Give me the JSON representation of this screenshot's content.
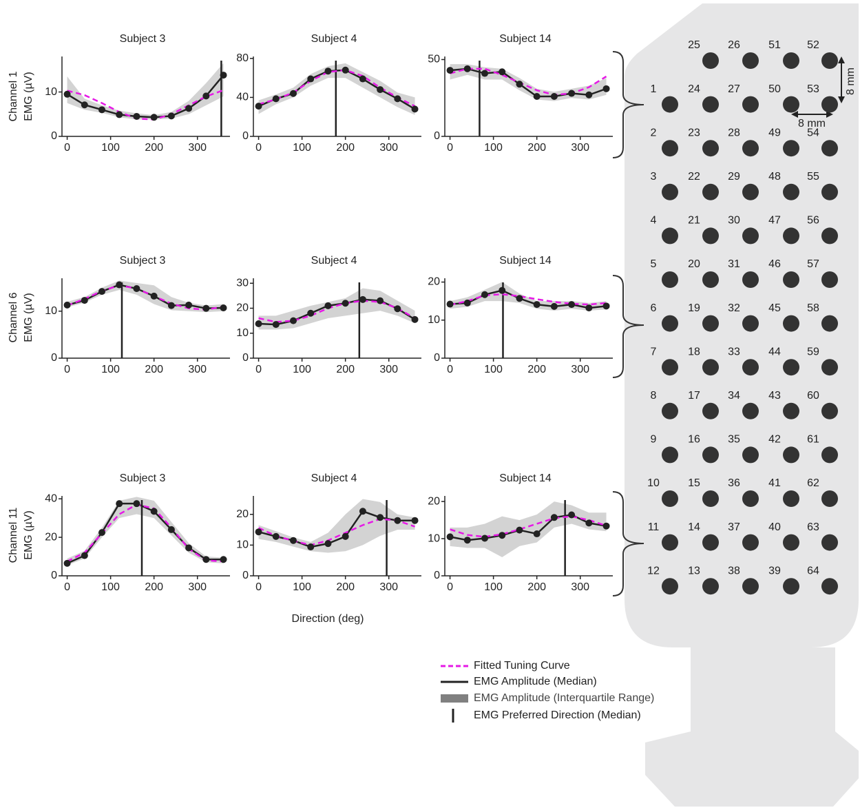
{
  "figure": {
    "x_label": "Direction (deg)",
    "row_labels": [
      [
        "Channel 1",
        "EMG (µV)"
      ],
      [
        "Channel 6",
        "EMG (µV)"
      ],
      [
        "Channel 11",
        "EMG (µV)"
      ]
    ]
  },
  "legend": [
    {
      "label": "Fitted Tuning Curve",
      "color": "#e619e6"
    },
    {
      "label": "EMG Amplitude (Median)",
      "color": "#222222"
    },
    {
      "label": "EMG Amplitude (Interquartile Range)",
      "color": "#808080"
    },
    {
      "label": "EMG Preferred Direction (Median)",
      "color": "#222222"
    }
  ],
  "chart_data": [
    {
      "type": "line",
      "title": "Subject 3",
      "x": [
        0,
        40,
        80,
        120,
        160,
        200,
        240,
        280,
        320,
        360
      ],
      "xlim": [
        -12,
        375
      ],
      "xticks": [
        0,
        100,
        200,
        300
      ],
      "ylim": [
        0,
        18
      ],
      "yticks": [
        0,
        10
      ],
      "median": [
        9.5,
        7.1,
        6,
        4.9,
        4.5,
        4.3,
        4.6,
        6.3,
        9.1,
        13.8
      ],
      "fit": [
        10.3,
        9.3,
        7.5,
        5.5,
        4,
        3.8,
        5,
        7,
        9,
        10.4
      ],
      "iqr_low": [
        7.5,
        6,
        5.3,
        4.3,
        3.8,
        3.8,
        4,
        5,
        7,
        9
      ],
      "iqr_high": [
        13.5,
        8.5,
        7,
        5.8,
        5.2,
        4.8,
        5.5,
        8,
        12,
        16.5
      ],
      "preferred_direction": 355
    },
    {
      "type": "line",
      "title": "Subject 4",
      "x": [
        0,
        40,
        80,
        120,
        160,
        200,
        240,
        280,
        320,
        360
      ],
      "xlim": [
        -12,
        375
      ],
      "xticks": [
        0,
        100,
        200,
        300
      ],
      "ylim": [
        0,
        82
      ],
      "yticks": [
        0,
        40,
        80
      ],
      "median": [
        31,
        38.6,
        44,
        59,
        67,
        68,
        59,
        48,
        38.6,
        28
      ],
      "fit": [
        33,
        38,
        45,
        57,
        66,
        68,
        62,
        50,
        40,
        31
      ],
      "iqr_low": [
        23,
        33,
        40,
        52,
        60,
        60,
        50,
        40,
        30,
        22
      ],
      "iqr_high": [
        37,
        43,
        50,
        64,
        72,
        75,
        66,
        57,
        45,
        40
      ],
      "preferred_direction": 178
    },
    {
      "type": "line",
      "title": "Subject 14",
      "x": [
        0,
        40,
        80,
        120,
        160,
        200,
        240,
        280,
        320,
        360
      ],
      "xlim": [
        -12,
        375
      ],
      "xticks": [
        0,
        100,
        200,
        300
      ],
      "ylim": [
        0,
        52
      ],
      "yticks": [
        0,
        50
      ],
      "median": [
        43,
        44,
        41,
        42,
        34,
        26,
        26,
        28,
        27,
        31
      ],
      "fit": [
        41,
        44,
        44,
        40,
        35,
        30,
        27,
        28,
        32,
        39
      ],
      "iqr_low": [
        37,
        40,
        37,
        37,
        30,
        24,
        23,
        25,
        24,
        27
      ],
      "iqr_high": [
        47,
        47,
        45,
        44,
        38,
        31,
        29,
        31,
        33,
        38
      ],
      "preferred_direction": 68
    },
    {
      "type": "line",
      "title": "Subject 3",
      "x": [
        0,
        40,
        80,
        120,
        160,
        200,
        240,
        280,
        320,
        360
      ],
      "xlim": [
        -12,
        375
      ],
      "xticks": [
        0,
        100,
        200,
        300
      ],
      "ylim": [
        0,
        17
      ],
      "yticks": [
        0,
        10
      ],
      "median": [
        11.3,
        12.3,
        14.2,
        15.6,
        14.8,
        13.2,
        11.2,
        11.3,
        10.6,
        10.7
      ],
      "fit": [
        11.2,
        12.6,
        14.3,
        15.5,
        14.8,
        13.2,
        11.6,
        10.6,
        10.3,
        11
      ],
      "iqr_low": [
        10.8,
        11.8,
        13.5,
        14.5,
        13.5,
        11.5,
        10.2,
        10,
        9.8,
        10
      ],
      "iqr_high": [
        12,
        13,
        15,
        16.5,
        16,
        15.5,
        13,
        11.8,
        11.2,
        11.5
      ],
      "preferred_direction": 126
    },
    {
      "type": "line",
      "title": "Subject 4",
      "x": [
        0,
        40,
        80,
        120,
        160,
        200,
        240,
        280,
        320,
        360
      ],
      "xlim": [
        -12,
        375
      ],
      "xticks": [
        0,
        100,
        200,
        300
      ],
      "ylim": [
        0,
        32
      ],
      "yticks": [
        0,
        10,
        20,
        30
      ],
      "median": [
        13.8,
        13.5,
        15,
        18,
        21,
        22,
        23.5,
        23,
        19.8,
        15.5
      ],
      "fit": [
        16,
        14.5,
        15,
        17,
        20,
        22,
        23,
        22.5,
        20,
        16
      ],
      "iqr_low": [
        11.5,
        11.5,
        12,
        14,
        16,
        17,
        18,
        19,
        17,
        14
      ],
      "iqr_high": [
        17,
        17,
        19,
        21,
        22.5,
        24,
        28,
        27,
        23,
        19
      ],
      "preferred_direction": 232
    },
    {
      "type": "line",
      "title": "Subject 14",
      "x": [
        0,
        40,
        80,
        120,
        160,
        200,
        240,
        280,
        320,
        360
      ],
      "xlim": [
        -12,
        375
      ],
      "xticks": [
        0,
        100,
        200,
        300
      ],
      "ylim": [
        0,
        21
      ],
      "yticks": [
        0,
        10,
        20
      ],
      "median": [
        14.2,
        14.5,
        16.7,
        17.8,
        15.7,
        14.1,
        13.6,
        14.1,
        13.2,
        13.7
      ],
      "fit": [
        14,
        15,
        16.5,
        16.8,
        16.3,
        15.5,
        14.8,
        14.3,
        14.1,
        14.5
      ],
      "iqr_low": [
        13,
        13.5,
        15,
        15,
        14.5,
        13,
        12.5,
        13,
        12.5,
        12.8
      ],
      "iqr_high": [
        15,
        16,
        18,
        20,
        17,
        15,
        15,
        15,
        14.5,
        15
      ],
      "preferred_direction": 122
    },
    {
      "type": "line",
      "title": "Subject 3",
      "x": [
        0,
        40,
        80,
        120,
        160,
        200,
        240,
        280,
        320,
        360
      ],
      "xlim": [
        -12,
        375
      ],
      "xticks": [
        0,
        100,
        200,
        300
      ],
      "ylim": [
        0,
        41.5
      ],
      "yticks": [
        0,
        20,
        40
      ],
      "median": [
        6.5,
        10.5,
        22.5,
        37.5,
        37.5,
        33.5,
        24,
        14.5,
        8.5,
        8.5
      ],
      "fit": [
        7.5,
        12,
        22,
        32,
        37,
        35,
        25,
        14,
        8,
        7.5
      ],
      "iqr_low": [
        5.5,
        9,
        20,
        30,
        32,
        30,
        21,
        12,
        7,
        6.5
      ],
      "iqr_high": [
        9,
        13,
        25,
        39,
        41,
        39,
        28,
        17,
        10,
        9.5
      ],
      "preferred_direction": 172
    },
    {
      "type": "line",
      "title": "Subject 4",
      "x": [
        0,
        40,
        80,
        120,
        160,
        200,
        240,
        280,
        320,
        360
      ],
      "xlim": [
        -12,
        375
      ],
      "xticks": [
        0,
        100,
        200,
        300
      ],
      "ylim": [
        0,
        26
      ],
      "yticks": [
        0,
        10,
        20
      ],
      "median": [
        14.3,
        12.8,
        11.5,
        9.4,
        10.5,
        12.8,
        21,
        19,
        18,
        18
      ],
      "fit": [
        15.6,
        13,
        11.4,
        10,
        11.5,
        14,
        16.5,
        18.5,
        18,
        16
      ],
      "iqr_low": [
        12,
        11,
        9.5,
        8,
        7.5,
        8,
        10,
        13,
        15,
        15
      ],
      "iqr_high": [
        16.5,
        14.5,
        12.5,
        11,
        14,
        20,
        25,
        24,
        20,
        19
      ],
      "preferred_direction": 295
    },
    {
      "type": "line",
      "title": "Subject 14",
      "x": [
        0,
        40,
        80,
        120,
        160,
        200,
        240,
        280,
        320,
        360
      ],
      "xlim": [
        -12,
        375
      ],
      "xticks": [
        0,
        100,
        200,
        300
      ],
      "ylim": [
        0,
        21.5
      ],
      "yticks": [
        0,
        10,
        20
      ],
      "median": [
        10.5,
        9.6,
        10.1,
        10.9,
        12.3,
        11.3,
        15.7,
        16.4,
        14.2,
        13.4
      ],
      "fit": [
        12.5,
        11,
        10.5,
        11.2,
        12.5,
        14,
        15.5,
        16,
        15,
        13.5
      ],
      "iqr_low": [
        8,
        7.5,
        7.5,
        5,
        8,
        9,
        13,
        14,
        12.5,
        12
      ],
      "iqr_high": [
        13,
        13,
        14,
        16,
        15,
        16.5,
        20,
        19,
        17,
        17
      ],
      "preferred_direction": 265
    }
  ],
  "electrode_array": {
    "rows": [
      [
        25,
        26,
        51,
        52
      ],
      [
        1,
        24,
        27,
        50,
        53
      ],
      [
        2,
        23,
        28,
        49,
        54
      ],
      [
        3,
        22,
        29,
        48,
        55
      ],
      [
        4,
        21,
        30,
        47,
        56
      ],
      [
        5,
        20,
        31,
        46,
        57
      ],
      [
        6,
        19,
        32,
        45,
        58
      ],
      [
        7,
        18,
        33,
        44,
        59
      ],
      [
        8,
        17,
        34,
        43,
        60
      ],
      [
        9,
        16,
        35,
        42,
        61
      ],
      [
        10,
        15,
        36,
        41,
        62
      ],
      [
        11,
        14,
        37,
        40,
        63
      ],
      [
        12,
        13,
        38,
        39,
        64
      ]
    ],
    "spacing_labels": [
      "8 mm",
      "8 mm"
    ]
  }
}
